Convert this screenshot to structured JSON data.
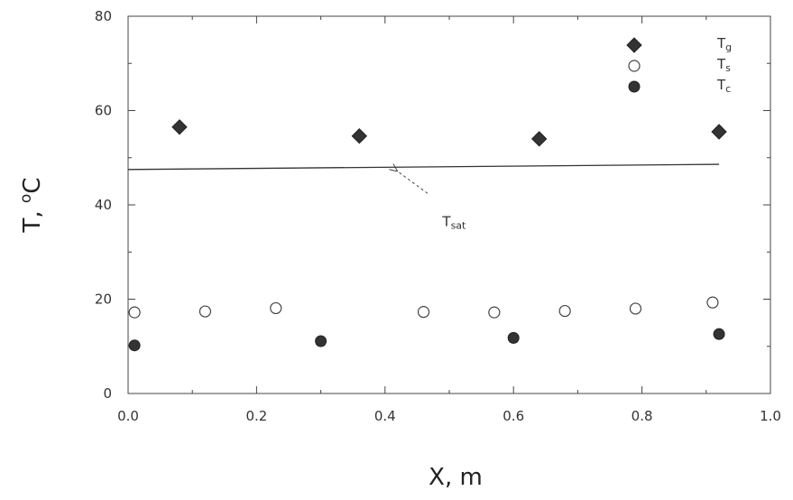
{
  "chart_data": {
    "type": "scatter",
    "xlabel": "X, m",
    "ylabel_main": "T, ",
    "ylabel_sup": "o",
    "ylabel_unit": "C",
    "xlim": [
      0.0,
      1.0
    ],
    "ylim": [
      0,
      80
    ],
    "x_ticks": [
      0.0,
      0.2,
      0.4,
      0.6,
      0.8,
      1.0
    ],
    "x_tick_labels": [
      "0.0",
      "0.2",
      "0.4",
      "0.6",
      "0.8",
      "1.0"
    ],
    "y_ticks": [
      0,
      20,
      40,
      60,
      80
    ],
    "y_tick_labels": [
      "0",
      "20",
      "40",
      "60",
      "80"
    ],
    "grid": false,
    "legend_position": "top-right",
    "series": [
      {
        "name": "Tg",
        "label_main": "T",
        "label_sub": "g",
        "marker": "diamond-filled",
        "color": "#333333",
        "x": [
          0.08,
          0.36,
          0.64,
          0.92
        ],
        "y": [
          56.5,
          54.6,
          54.0,
          55.5
        ]
      },
      {
        "name": "Ts",
        "label_main": "T",
        "label_sub": "s",
        "marker": "circle-open",
        "color": "#333333",
        "x": [
          0.01,
          0.12,
          0.23,
          0.46,
          0.57,
          0.68,
          0.79,
          0.91
        ],
        "y": [
          17.2,
          17.4,
          18.1,
          17.3,
          17.2,
          17.5,
          18.0,
          19.3
        ]
      },
      {
        "name": "Tc",
        "label_main": "T",
        "label_sub": "c",
        "marker": "circle-filled",
        "color": "#333333",
        "x": [
          0.01,
          0.3,
          0.6,
          0.92
        ],
        "y": [
          10.2,
          11.1,
          11.8,
          12.6
        ]
      }
    ],
    "reference_line": {
      "label_main": "T",
      "label_sub": "sat",
      "x": [
        0.0,
        0.92
      ],
      "y": [
        47.5,
        48.6
      ],
      "arrow_target": [
        0.41,
        47.8
      ],
      "label_anchor": [
        0.45,
        35.5
      ]
    }
  }
}
